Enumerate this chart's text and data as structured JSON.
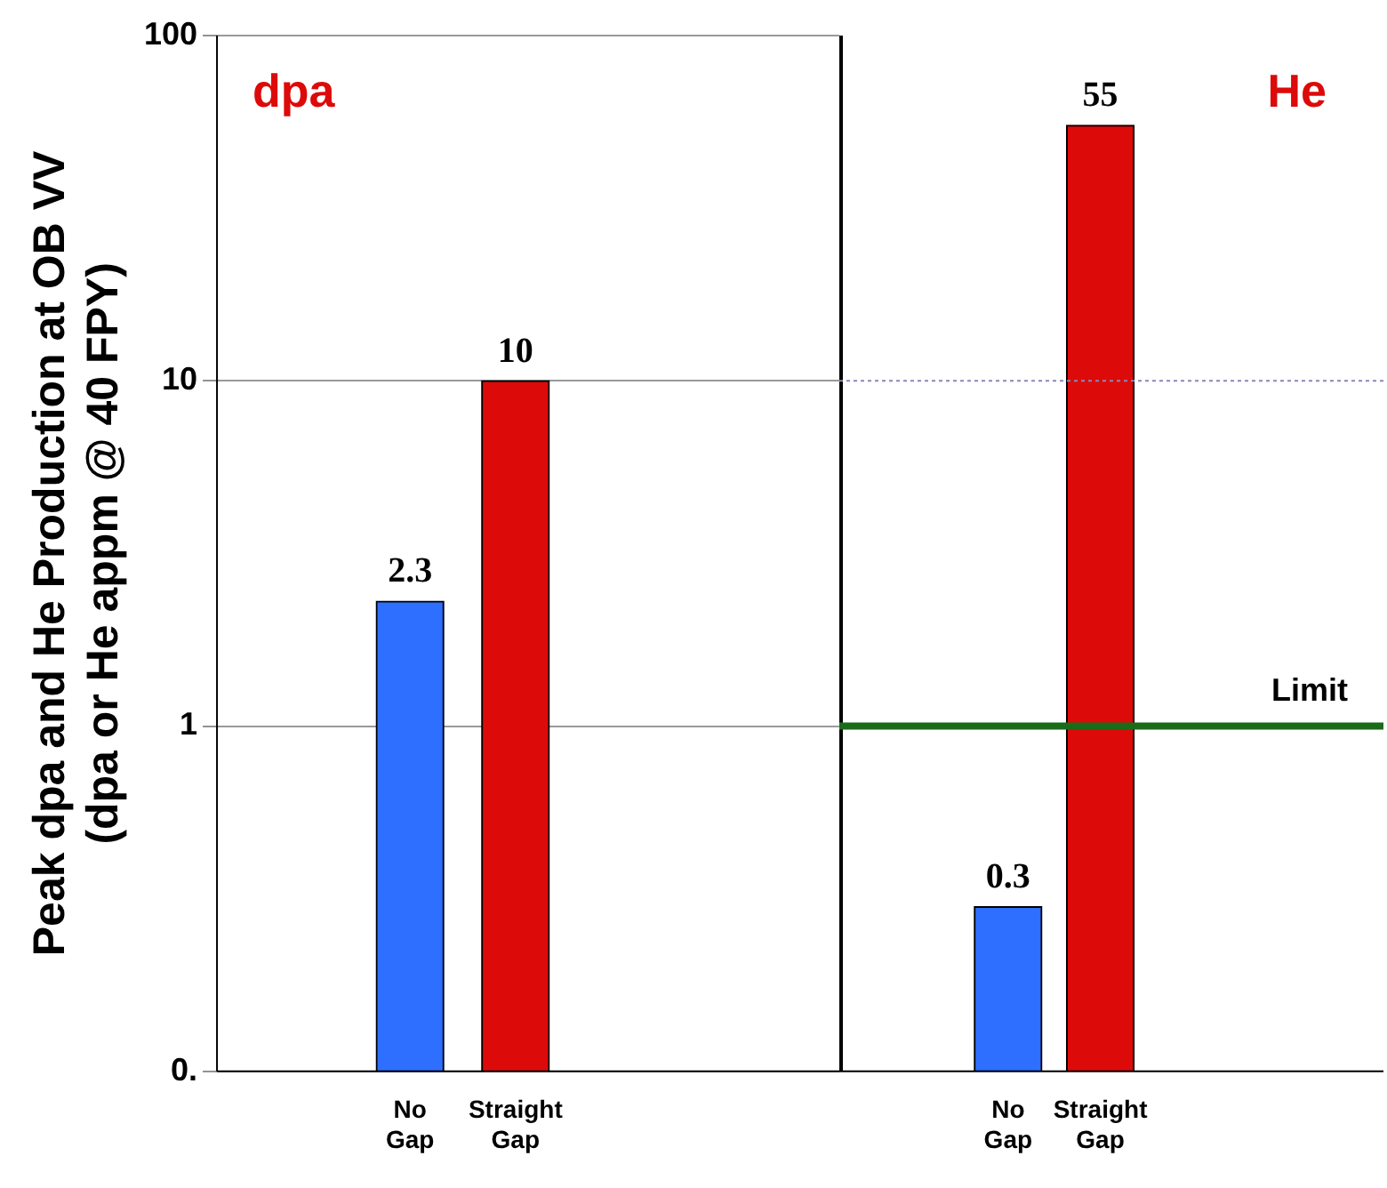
{
  "chart_data": [
    {
      "type": "bar",
      "ylabel": "Peak dpa and He Production at OB VV\n(dpa or He appm @ 40 FPY)",
      "annotations": [
        "dpa"
      ],
      "categories": [
        "No Gap",
        "Straight Gap"
      ],
      "values": [
        2.3,
        10
      ],
      "colors": [
        "#2e6fff",
        "#dd0a0a"
      ],
      "log": "y",
      "ylim": [
        0.1,
        100
      ],
      "yticks": [
        {
          "value": 0.1,
          "label": "0."
        },
        1,
        10,
        100
      ],
      "grid": "y",
      "legend": false,
      "data_labels": true
    },
    {
      "type": "bar",
      "annotations": [
        "He"
      ],
      "categories": [
        "No Gap",
        "Straight Gap"
      ],
      "values": [
        0.3,
        55
      ],
      "colors": [
        "#2e6fff",
        "#dd0a0a"
      ],
      "log": "y",
      "ylim": [
        0.1,
        100
      ],
      "yticks": [
        0.1,
        1,
        10,
        100
      ],
      "legend": false,
      "data_labels": true,
      "tick_labels": "x",
      "ref_lines": [
        {
          "axis": "y",
          "value": 1,
          "label": "Limit",
          "color": "#1a6b1a"
        },
        {
          "axis": "y",
          "value": 10,
          "color": "#8888bb",
          "line_style": "dotted"
        }
      ]
    }
  ]
}
